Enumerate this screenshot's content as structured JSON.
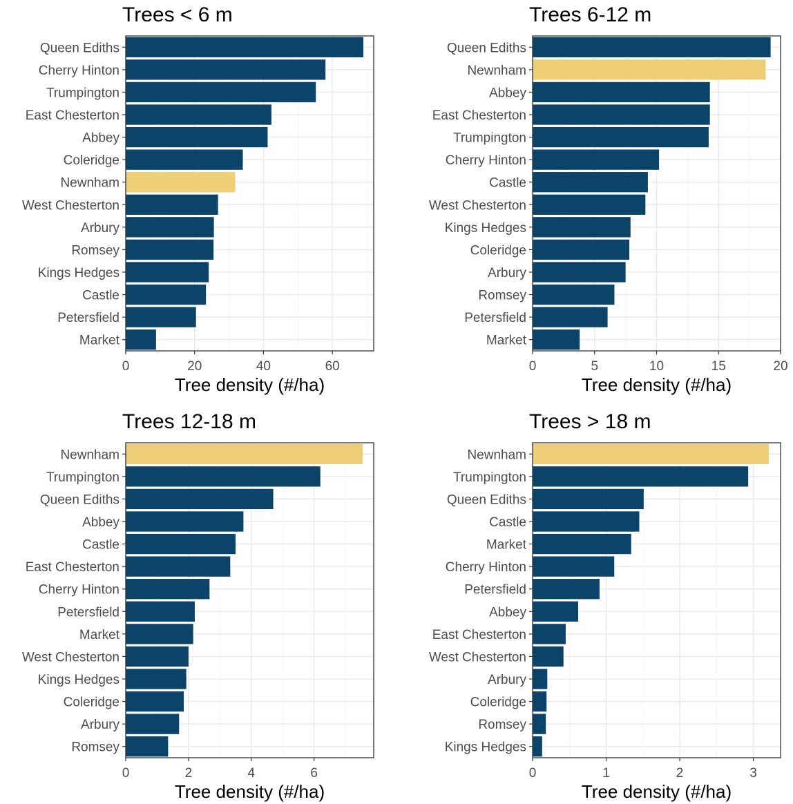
{
  "colors": {
    "bar": "#0b4468",
    "highlight": "#eecf78",
    "panel_border": "#333333",
    "grid_major": "#ebebeb",
    "grid_minor": "#f5f5f5",
    "text": "#4d4d4d"
  },
  "highlight_category": "Newnham",
  "chart_data": [
    {
      "type": "bar",
      "orientation": "horizontal",
      "title": "Trees < 6 m",
      "xlabel": "Tree density (#/ha)",
      "xlim": [
        0,
        72
      ],
      "xticks": [
        0,
        20,
        40,
        60
      ],
      "xtick_labels": [
        "0",
        "20",
        "40",
        "60"
      ],
      "grid": true,
      "categories": [
        "Queen Ediths",
        "Cherry Hinton",
        "Trumpington",
        "East Chesterton",
        "Abbey",
        "Coleridge",
        "Newnham",
        "West Chesterton",
        "Arbury",
        "Romsey",
        "Kings Hedges",
        "Castle",
        "Petersfield",
        "Market"
      ],
      "values": [
        69,
        58,
        55.2,
        42.3,
        41.2,
        34,
        31.8,
        26.8,
        25.6,
        25.5,
        24.1,
        23.3,
        20.4,
        8.8
      ]
    },
    {
      "type": "bar",
      "orientation": "horizontal",
      "title": "Trees 6-12 m",
      "xlabel": "Tree density (#/ha)",
      "xlim": [
        0,
        20
      ],
      "xticks": [
        0,
        5,
        10,
        15,
        20
      ],
      "xtick_labels": [
        "0",
        "5",
        "10",
        "15",
        "20"
      ],
      "grid": true,
      "categories": [
        "Queen Ediths",
        "Newnham",
        "Abbey",
        "East Chesterton",
        "Trumpington",
        "Cherry Hinton",
        "Castle",
        "West Chesterton",
        "Kings Hedges",
        "Coleridge",
        "Arbury",
        "Romsey",
        "Petersfield",
        "Market"
      ],
      "values": [
        19.2,
        18.8,
        14.3,
        14.3,
        14.2,
        10.2,
        9.3,
        9.1,
        7.9,
        7.8,
        7.5,
        6.6,
        6.05,
        3.8
      ]
    },
    {
      "type": "bar",
      "orientation": "horizontal",
      "title": "Trees 12-18 m",
      "xlabel": "Tree density (#/ha)",
      "xlim": [
        0,
        7.9
      ],
      "xticks": [
        0,
        2,
        4,
        6
      ],
      "xtick_labels": [
        "0",
        "2",
        "4",
        "6"
      ],
      "grid": true,
      "categories": [
        "Newnham",
        "Trumpington",
        "Queen Ediths",
        "Abbey",
        "Castle",
        "East Chesterton",
        "Cherry Hinton",
        "Petersfield",
        "Market",
        "West Chesterton",
        "Kings Hedges",
        "Coleridge",
        "Arbury",
        "Romsey"
      ],
      "values": [
        7.55,
        6.2,
        4.7,
        3.75,
        3.5,
        3.33,
        2.67,
        2.2,
        2.15,
        2.0,
        1.93,
        1.85,
        1.7,
        1.35
      ]
    },
    {
      "type": "bar",
      "orientation": "horizontal",
      "title": "Trees > 18 m",
      "xlabel": "Tree density (#/ha)",
      "xlim": [
        0,
        3.37
      ],
      "xticks": [
        0,
        1,
        2,
        3
      ],
      "xtick_labels": [
        "0",
        "1",
        "2",
        "3"
      ],
      "grid": true,
      "categories": [
        "Newnham",
        "Trumpington",
        "Queen Ediths",
        "Castle",
        "Market",
        "Cherry Hinton",
        "Petersfield",
        "Abbey",
        "East Chesterton",
        "West Chesterton",
        "Arbury",
        "Coleridge",
        "Romsey",
        "Kings Hedges"
      ],
      "values": [
        3.21,
        2.93,
        1.51,
        1.45,
        1.34,
        1.11,
        0.91,
        0.62,
        0.45,
        0.42,
        0.2,
        0.19,
        0.18,
        0.13
      ]
    }
  ]
}
